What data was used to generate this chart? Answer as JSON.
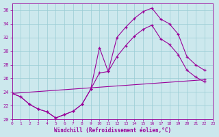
{
  "xlabel": "Windchill (Refroidissement éolien,°C)",
  "xlim": [
    0,
    23
  ],
  "ylim": [
    20,
    37
  ],
  "yticks": [
    20,
    22,
    24,
    26,
    28,
    30,
    32,
    34,
    36
  ],
  "xticks": [
    0,
    1,
    2,
    3,
    4,
    5,
    6,
    7,
    8,
    9,
    10,
    11,
    12,
    13,
    14,
    15,
    16,
    17,
    18,
    19,
    20,
    21,
    22,
    23
  ],
  "bg_color": "#cce8ed",
  "line_color": "#990099",
  "grid_color": "#99ccd4",
  "figsize": [
    3.2,
    2.0
  ],
  "dpi": 100,
  "lines": [
    {
      "x": [
        0,
        1,
        2,
        3,
        4,
        5,
        6,
        7,
        8,
        9,
        10,
        11,
        12,
        13,
        14,
        15,
        16,
        17,
        18,
        19,
        20,
        21,
        22
      ],
      "y": [
        23.8,
        23.3,
        22.2,
        21.5,
        21.1,
        20.2,
        20.7,
        21.2,
        22.2,
        24.4,
        30.5,
        27.0,
        32.0,
        33.5,
        34.8,
        35.8,
        36.3,
        34.7,
        34.0,
        32.5,
        29.2,
        28.0,
        27.2
      ]
    },
    {
      "x": [
        0,
        1,
        2,
        3,
        4,
        5,
        6,
        7,
        8,
        9,
        10,
        11,
        12,
        13,
        14,
        15,
        16,
        17,
        18,
        19,
        20,
        21,
        22
      ],
      "y": [
        23.8,
        23.3,
        22.2,
        21.5,
        21.1,
        20.2,
        20.7,
        21.2,
        22.2,
        24.4,
        26.8,
        27.0,
        29.2,
        30.8,
        32.2,
        33.2,
        33.8,
        31.8,
        31.0,
        29.5,
        27.2,
        26.2,
        25.5
      ]
    },
    {
      "x": [
        0,
        22
      ],
      "y": [
        23.8,
        25.8
      ]
    }
  ]
}
